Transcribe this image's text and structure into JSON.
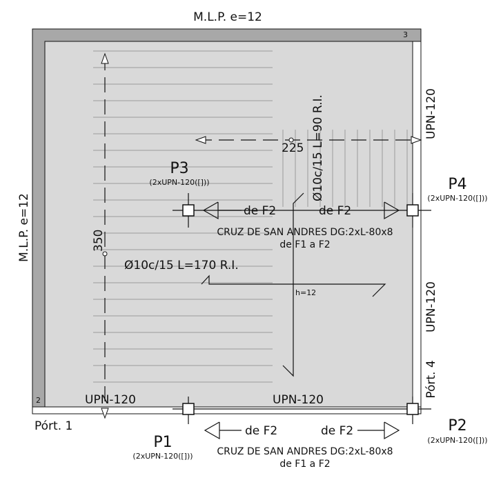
{
  "drawing": {
    "wall_top": "M.L.P. e=12",
    "wall_left": "M.L.P. e=12",
    "corner_3": "3",
    "corner_2": "2",
    "beam_right_top": "UPN-120",
    "beam_right_mid": "UPN-120",
    "frame_4": "Pórt. 4",
    "frame_1": "Pórt. 1",
    "beam_bottom_left": "UPN-120",
    "beam_bottom_mid": "UPN-120",
    "pillars": [
      {
        "name": "P3",
        "profile": "(2xUPN-120([]))"
      },
      {
        "name": "P4",
        "profile": "(2xUPN-120([]))"
      },
      {
        "name": "P1",
        "profile": "(2xUPN-120([]))"
      },
      {
        "name": "P2",
        "profile": "(2xUPN-120([]))"
      }
    ],
    "dim_225": "225",
    "rebar_short": "Ø10c/15 L=90 R.I.",
    "dim_350": "350",
    "rebar_long": "Ø10c/15 L=170 R.I.",
    "slab_thickness": "h=12",
    "bracing": [
      {
        "left": "de F2",
        "right": "de F2",
        "title": "CRUZ DE SAN ANDRES DG:2xL-80x8",
        "sub": "de F1 a F2"
      },
      {
        "left": "de F2",
        "right": "de F2",
        "title": "CRUZ DE SAN ANDRES DG:2xL-80x8",
        "sub": "de F1 a F2"
      }
    ]
  }
}
